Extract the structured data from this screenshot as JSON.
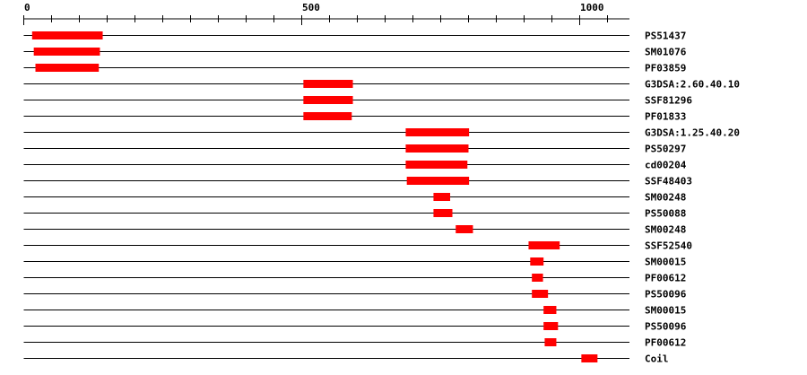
{
  "axis": {
    "min": 0,
    "max": 1090,
    "minor_tick_step": 50,
    "major_tick_labels": [
      "0",
      "500",
      "1000"
    ],
    "major_tick_values": [
      0,
      500,
      1000
    ]
  },
  "colors": {
    "feature": "#ff0000",
    "line": "#000000"
  },
  "tracks": [
    {
      "label": "PS51437",
      "start": 15,
      "end": 142
    },
    {
      "label": "SM01076",
      "start": 18,
      "end": 137
    },
    {
      "label": "PF03859",
      "start": 21,
      "end": 135
    },
    {
      "label": "G3DSA:2.60.40.10",
      "start": 503,
      "end": 592
    },
    {
      "label": "SSF81296",
      "start": 503,
      "end": 592
    },
    {
      "label": "PF01833",
      "start": 503,
      "end": 590
    },
    {
      "label": "G3DSA:1.25.40.20",
      "start": 687,
      "end": 801
    },
    {
      "label": "PS50297",
      "start": 687,
      "end": 800
    },
    {
      "label": "cd00204",
      "start": 687,
      "end": 798
    },
    {
      "label": "SSF48403",
      "start": 689,
      "end": 801
    },
    {
      "label": "SM00248",
      "start": 737,
      "end": 767
    },
    {
      "label": "PS50088",
      "start": 737,
      "end": 771
    },
    {
      "label": "SM00248",
      "start": 777,
      "end": 808
    },
    {
      "label": "SSF52540",
      "start": 908,
      "end": 964
    },
    {
      "label": "SM00015",
      "start": 911,
      "end": 935
    },
    {
      "label": "PF00612",
      "start": 914,
      "end": 934
    },
    {
      "label": "PS50096",
      "start": 914,
      "end": 943
    },
    {
      "label": "SM00015",
      "start": 935,
      "end": 958
    },
    {
      "label": "PS50096",
      "start": 935,
      "end": 961
    },
    {
      "label": "PF00612",
      "start": 937,
      "end": 958
    },
    {
      "label": "Coil",
      "start": 1003,
      "end": 1032
    }
  ]
}
